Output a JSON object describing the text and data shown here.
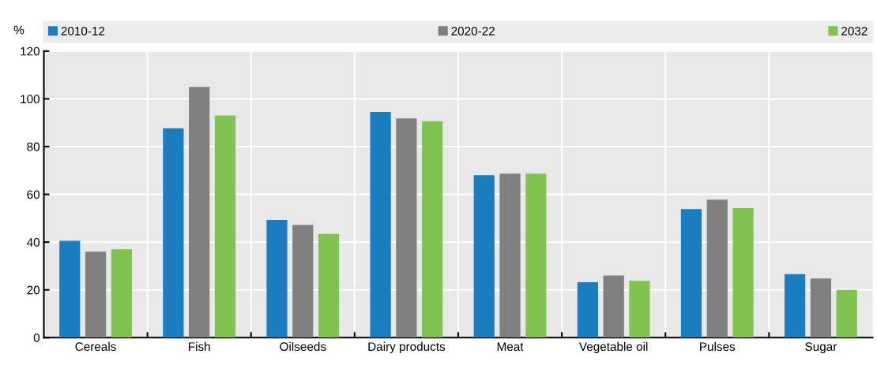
{
  "chart_data": {
    "type": "bar",
    "ylabel": "%",
    "categories": [
      "Cereals",
      "Fish",
      "Oilseeds",
      "Dairy products",
      "Meat",
      "Vegetable oil",
      "Pulses",
      "Sugar"
    ],
    "series": [
      {
        "name": "2010-12",
        "color": "#1a7dc0",
        "values": [
          40.5,
          87.7,
          49.3,
          94.5,
          68,
          23.2,
          53.8,
          26.6
        ]
      },
      {
        "name": "2020-22",
        "color": "#808080",
        "values": [
          36,
          105,
          47.2,
          91.8,
          68.7,
          26,
          57.8,
          24.8
        ]
      },
      {
        "name": "2032",
        "color": "#80c350",
        "values": [
          37,
          93,
          43.4,
          90.6,
          68.7,
          23.8,
          54.2,
          20
        ]
      }
    ],
    "ylim": [
      0,
      120
    ],
    "yticks": [
      0,
      20,
      40,
      60,
      80,
      100,
      120
    ],
    "grid": true,
    "legend": "top"
  }
}
